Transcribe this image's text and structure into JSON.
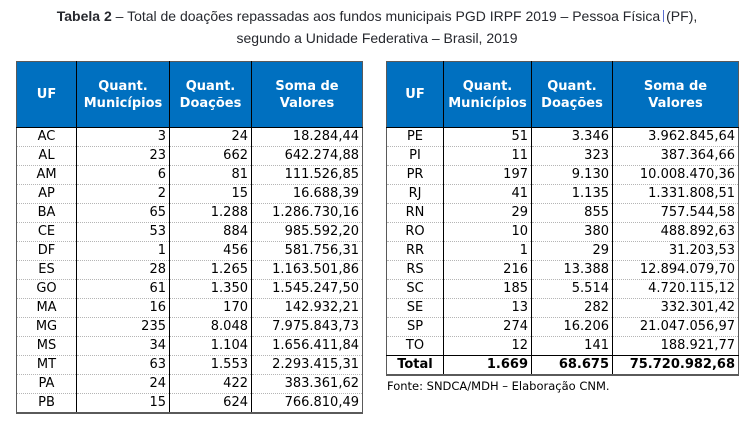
{
  "title": {
    "label_bold": "Tabela 2",
    "line1_rest": " – Total de doações repassadas aos fundos municipais PGD IRPF 2019 – Pessoa Física",
    "line1_suffix": "(PF),",
    "line2": "segundo a Unidade Federativa – Brasil, 2019"
  },
  "columns": [
    {
      "key": "uf",
      "lines": [
        "UF"
      ]
    },
    {
      "key": "quant-municipios",
      "lines": [
        "Quant.",
        "Municípios"
      ]
    },
    {
      "key": "quant-doacoes",
      "lines": [
        "Quant.",
        "Doações"
      ]
    },
    {
      "key": "soma-valores",
      "lines": [
        "Soma de",
        "Valores"
      ]
    }
  ],
  "left_table": {
    "rows": [
      [
        "AC",
        "3",
        "24",
        "18.284,44"
      ],
      [
        "AL",
        "23",
        "662",
        "642.274,88"
      ],
      [
        "AM",
        "6",
        "81",
        "111.526,85"
      ],
      [
        "AP",
        "2",
        "15",
        "16.688,39"
      ],
      [
        "BA",
        "65",
        "1.288",
        "1.286.730,16"
      ],
      [
        "CE",
        "53",
        "884",
        "985.592,20"
      ],
      [
        "DF",
        "1",
        "456",
        "581.756,31"
      ],
      [
        "ES",
        "28",
        "1.265",
        "1.163.501,86"
      ],
      [
        "GO",
        "61",
        "1.350",
        "1.545.247,50"
      ],
      [
        "MA",
        "16",
        "170",
        "142.932,21"
      ],
      [
        "MG",
        "235",
        "8.048",
        "7.975.843,73"
      ],
      [
        "MS",
        "34",
        "1.104",
        "1.656.411,84"
      ],
      [
        "MT",
        "63",
        "1.553",
        "2.293.415,31"
      ],
      [
        "PA",
        "24",
        "422",
        "383.361,62"
      ],
      [
        "PB",
        "15",
        "624",
        "766.810,49"
      ]
    ]
  },
  "right_table": {
    "rows": [
      [
        "PE",
        "51",
        "3.346",
        "3.962.845,64"
      ],
      [
        "PI",
        "11",
        "323",
        "387.364,66"
      ],
      [
        "PR",
        "197",
        "9.130",
        "10.008.470,36"
      ],
      [
        "RJ",
        "41",
        "1.135",
        "1.331.808,51"
      ],
      [
        "RN",
        "29",
        "855",
        "757.544,58"
      ],
      [
        "RO",
        "10",
        "380",
        "488.892,63"
      ],
      [
        "RR",
        "1",
        "29",
        "31.203,53"
      ],
      [
        "RS",
        "216",
        "13.388",
        "12.894.079,70"
      ],
      [
        "SC",
        "185",
        "5.514",
        "4.720.115,12"
      ],
      [
        "SE",
        "13",
        "282",
        "332.301,42"
      ],
      [
        "SP",
        "274",
        "16.206",
        "21.047.056,97"
      ],
      [
        "TO",
        "12",
        "141",
        "188.921,77"
      ]
    ],
    "total_row": [
      "Total",
      "1.669",
      "68.675",
      "75.720.982,68"
    ]
  },
  "source_note": "Fonte: SNDCA/MDH – Elaboração CNM.",
  "colors": {
    "header_bg": "#0070C0",
    "header_text": "#FFFFFF"
  }
}
